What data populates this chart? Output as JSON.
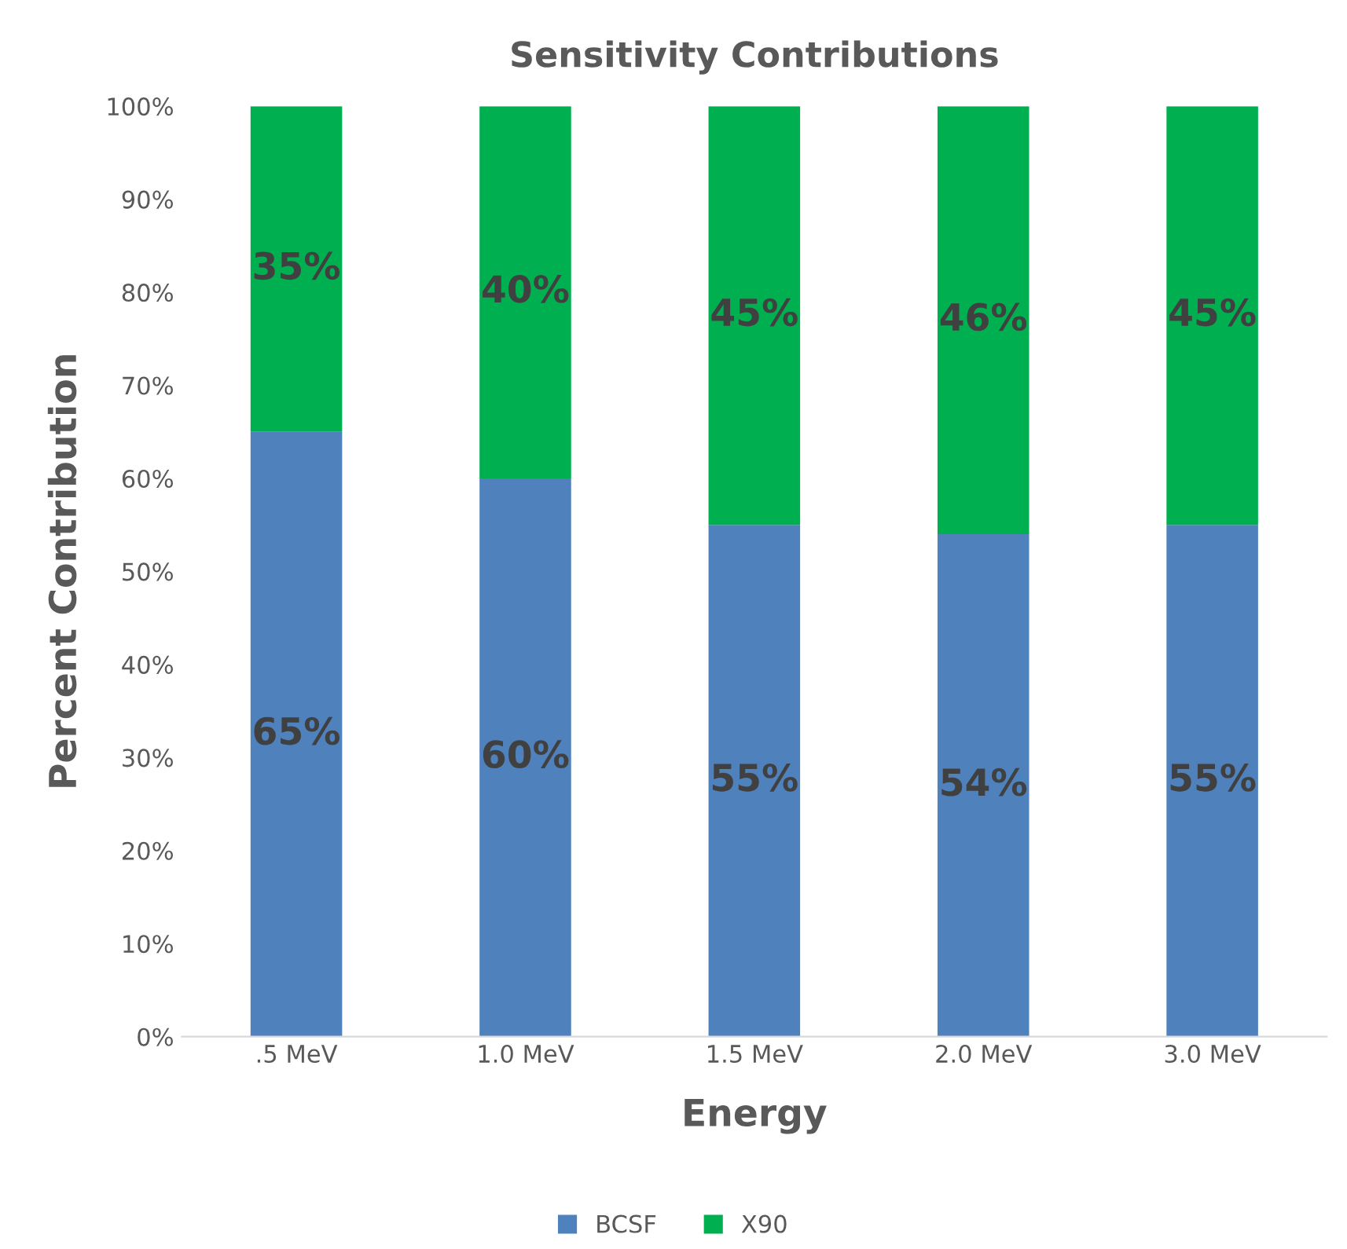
{
  "chart_data": {
    "type": "bar",
    "title": "Sensitivity Contributions",
    "xlabel": "Energy",
    "ylabel": "Percent Contribution",
    "categories": [
      ".5 MeV",
      "1.0 MeV",
      "1.5 MeV",
      "2.0 MeV",
      "3.0 MeV"
    ],
    "stacked": true,
    "series": [
      {
        "name": "BCSF",
        "color": "#4f81bd",
        "values": [
          65,
          60,
          55,
          54,
          55
        ],
        "value_labels": [
          "65%",
          "60%",
          "55%",
          "54%",
          "55%"
        ]
      },
      {
        "name": "X90",
        "color": "#00b050",
        "values": [
          35,
          40,
          45,
          46,
          45
        ],
        "value_labels": [
          "35%",
          "40%",
          "45%",
          "46%",
          "45%"
        ]
      }
    ],
    "ylim": [
      0,
      100
    ],
    "yticks": [
      {
        "value": 0,
        "label": "0%"
      },
      {
        "value": 10,
        "label": "10%"
      },
      {
        "value": 20,
        "label": "20%"
      },
      {
        "value": 30,
        "label": "30%"
      },
      {
        "value": 40,
        "label": "40%"
      },
      {
        "value": 50,
        "label": "50%"
      },
      {
        "value": 60,
        "label": "60%"
      },
      {
        "value": 70,
        "label": "70%"
      },
      {
        "value": 80,
        "label": "80%"
      },
      {
        "value": 90,
        "label": "90%"
      },
      {
        "value": 100,
        "label": "100%"
      }
    ],
    "grid": false,
    "legend": "bottom"
  }
}
